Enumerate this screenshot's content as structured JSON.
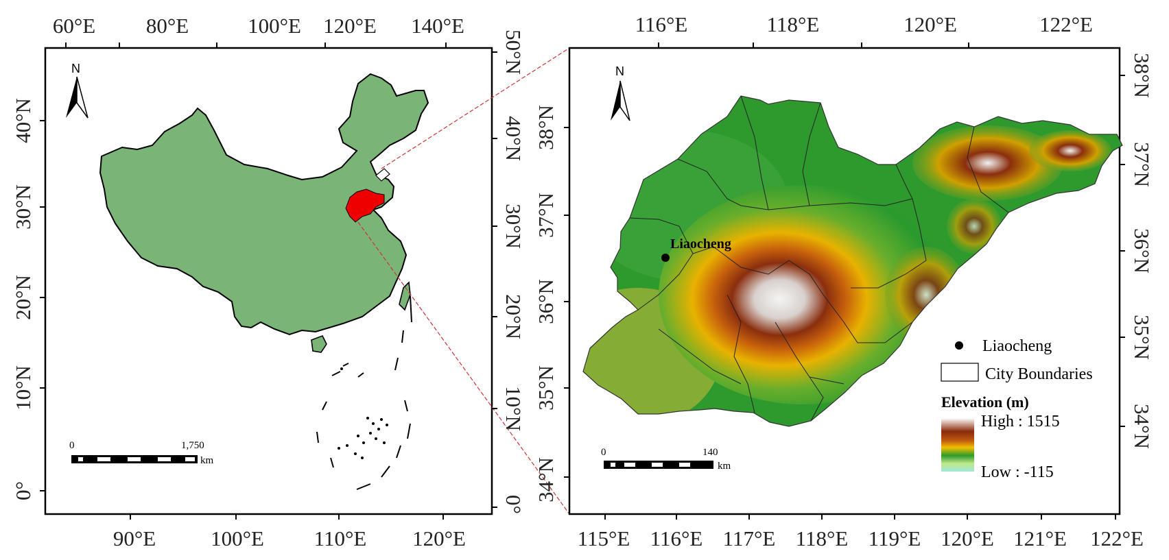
{
  "colors": {
    "china_fill": "#7ab577",
    "shandong_highlight": "#ee0000",
    "connector": "#cc3333",
    "frame": "#000000"
  },
  "left_map": {
    "top_ticks": [
      "60°E",
      "80°E",
      "100°E",
      "120°E",
      "140°E"
    ],
    "bottom_ticks": [
      "90°E",
      "100°E",
      "110°E",
      "120°E"
    ],
    "left_ticks": [
      "40°N",
      "30°N",
      "20°N",
      "10°N",
      "0°"
    ],
    "right_ticks": [
      "50°N",
      "40°N",
      "30°N",
      "20°N",
      "10°N",
      "0°"
    ],
    "north_label": "N",
    "scale_start": "0",
    "scale_end": "1,750",
    "scale_unit": "km"
  },
  "right_map": {
    "top_ticks": [
      "116°E",
      "118°E",
      "120°E",
      "122°E"
    ],
    "bottom_ticks": [
      "115°E",
      "116°E",
      "117°E",
      "118°E",
      "119°E",
      "120°E",
      "121°E",
      "122°E"
    ],
    "left_ticks": [
      "38°N",
      "37°N",
      "36°N",
      "35°N",
      "34°N"
    ],
    "right_ticks": [
      "38°N",
      "37°N",
      "36°N",
      "35°N",
      "34°N"
    ],
    "north_label": "N",
    "city_label": "Liaocheng",
    "scale_start": "0",
    "scale_end": "140",
    "scale_unit": "km"
  },
  "legend": {
    "point_label": "Liaocheng",
    "boundary_label": "City Boundaries",
    "elevation_title": "Elevation (m)",
    "high_label": "High : 1515",
    "low_label": "Low : -115"
  }
}
